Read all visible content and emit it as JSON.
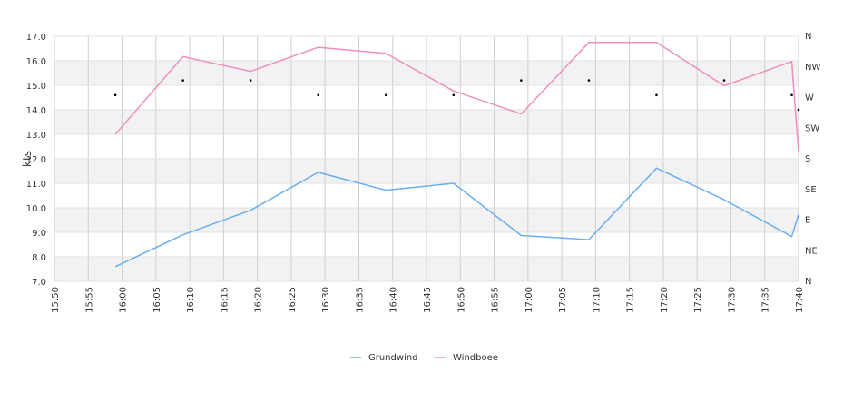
{
  "chart_data": {
    "type": "line",
    "ylabel": "kts",
    "ylim": [
      7.0,
      17.0
    ],
    "yticks": [
      "7.0",
      "8.0",
      "9.0",
      "10.0",
      "11.0",
      "12.0",
      "13.0",
      "14.0",
      "15.0",
      "16.0",
      "17.0"
    ],
    "x_range": [
      "15:50",
      "17:40"
    ],
    "xticks": [
      "15:50",
      "15:55",
      "16:00",
      "16:05",
      "16:10",
      "16:15",
      "16:20",
      "16:25",
      "16:30",
      "16:35",
      "16:40",
      "16:45",
      "16:50",
      "16:55",
      "17:00",
      "17:05",
      "17:10",
      "17:15",
      "17:20",
      "17:25",
      "17:30",
      "17:35",
      "17:40"
    ],
    "direction_axis_labels": [
      "N",
      "NE",
      "E",
      "SE",
      "S",
      "SW",
      "W",
      "NW",
      "N"
    ],
    "series": [
      {
        "name": "Grundwind",
        "color": "#6aaeee",
        "points": [
          [
            "15:59",
            7.6
          ],
          [
            "16:09",
            8.9
          ],
          [
            "16:19",
            9.9
          ],
          [
            "16:29",
            11.45
          ],
          [
            "16:39",
            10.72
          ],
          [
            "16:49",
            11.0
          ],
          [
            "16:59",
            8.87
          ],
          [
            "17:09",
            8.7
          ],
          [
            "17:19",
            11.62
          ],
          [
            "17:29",
            10.33
          ],
          [
            "17:39",
            8.83
          ],
          [
            "17:40",
            9.73
          ]
        ]
      },
      {
        "name": "Windboee",
        "color": "#ee8fbe",
        "points": [
          [
            "15:59",
            13.0
          ],
          [
            "16:09",
            16.17
          ],
          [
            "16:19",
            15.57
          ],
          [
            "16:29",
            16.55
          ],
          [
            "16:39",
            16.3
          ],
          [
            "16:49",
            14.77
          ],
          [
            "16:59",
            13.83
          ],
          [
            "17:09",
            16.75
          ],
          [
            "17:19",
            16.75
          ],
          [
            "17:29",
            14.98
          ],
          [
            "17:39",
            15.97
          ],
          [
            "17:40",
            12.25
          ]
        ]
      }
    ],
    "direction_markers": [
      [
        "15:59",
        14.6
      ],
      [
        "16:09",
        15.2
      ],
      [
        "16:19",
        15.2
      ],
      [
        "16:29",
        14.6
      ],
      [
        "16:39",
        14.6
      ],
      [
        "16:49",
        14.6
      ],
      [
        "16:59",
        15.2
      ],
      [
        "17:09",
        15.2
      ],
      [
        "17:19",
        14.6
      ],
      [
        "17:29",
        15.2
      ],
      [
        "17:39",
        14.6
      ],
      [
        "17:40",
        14.0
      ]
    ],
    "grid": true,
    "legend_position": "bottom-center"
  }
}
